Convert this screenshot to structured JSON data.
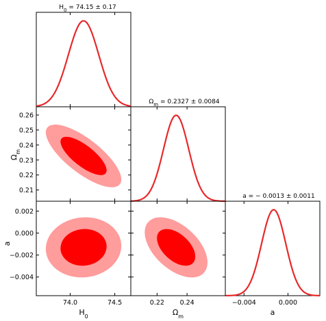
{
  "chart_data": {
    "type": "corner",
    "colors": {
      "line": "#e8282a",
      "contour_inner": "#ff0000",
      "contour_outer": "#ff9c9c"
    },
    "parameters": [
      {
        "name": "H0",
        "label_main": "H",
        "label_sub": "0",
        "mean": 74.15,
        "sigma": 0.17,
        "range": [
          73.62,
          74.68
        ],
        "ticks": [
          74.0,
          74.5
        ],
        "tick_labels": [
          "74.0",
          "74.5"
        ],
        "title_main": "H",
        "title_sub": "0",
        "title_rest": " = 74.15 ± 0.17"
      },
      {
        "name": "Om",
        "label_main": "Ω",
        "label_sub": "m",
        "mean": 0.2327,
        "sigma": 0.0084,
        "range": [
          0.2025,
          0.2655
        ],
        "ticks": [
          0.22,
          0.24
        ],
        "tick_labels": [
          "0.22",
          "0.24"
        ],
        "ytick_labels": [
          "0.21",
          "0.22",
          "0.23",
          "0.24",
          "0.25",
          "0.26"
        ],
        "yticks": [
          0.21,
          0.22,
          0.23,
          0.24,
          0.25,
          0.26
        ],
        "title_main": "Ω",
        "title_sub": "m",
        "title_rest": " = 0.2327 ± 0.0084"
      },
      {
        "name": "a",
        "label_main": "a",
        "label_sub": "",
        "mean": -0.0013,
        "sigma": 0.0011,
        "range": [
          -0.0057,
          0.0029
        ],
        "ticks": [
          -0.004,
          0.0
        ],
        "tick_labels": [
          "−0.004",
          "0.000"
        ],
        "ytick_labels": [
          "−0.004",
          "−0.002",
          "0.000",
          "0.002"
        ],
        "yticks": [
          -0.004,
          -0.002,
          0.0,
          0.002
        ],
        "title_main": "a",
        "title_sub": "",
        "title_rest": " = − 0.0013 ± 0.0011"
      }
    ],
    "contours": [
      {
        "x": "H0",
        "y": "Om",
        "center": [
          74.15,
          0.2327
        ],
        "correlation": -0.75,
        "levels": [
          "1σ",
          "2σ"
        ]
      },
      {
        "x": "H0",
        "y": "a",
        "center": [
          74.15,
          -0.0013
        ],
        "correlation": 0.05,
        "levels": [
          "1σ",
          "2σ"
        ]
      },
      {
        "x": "Om",
        "y": "a",
        "center": [
          0.2327,
          -0.0013
        ],
        "correlation": -0.5,
        "levels": [
          "1σ",
          "2σ"
        ]
      }
    ]
  }
}
